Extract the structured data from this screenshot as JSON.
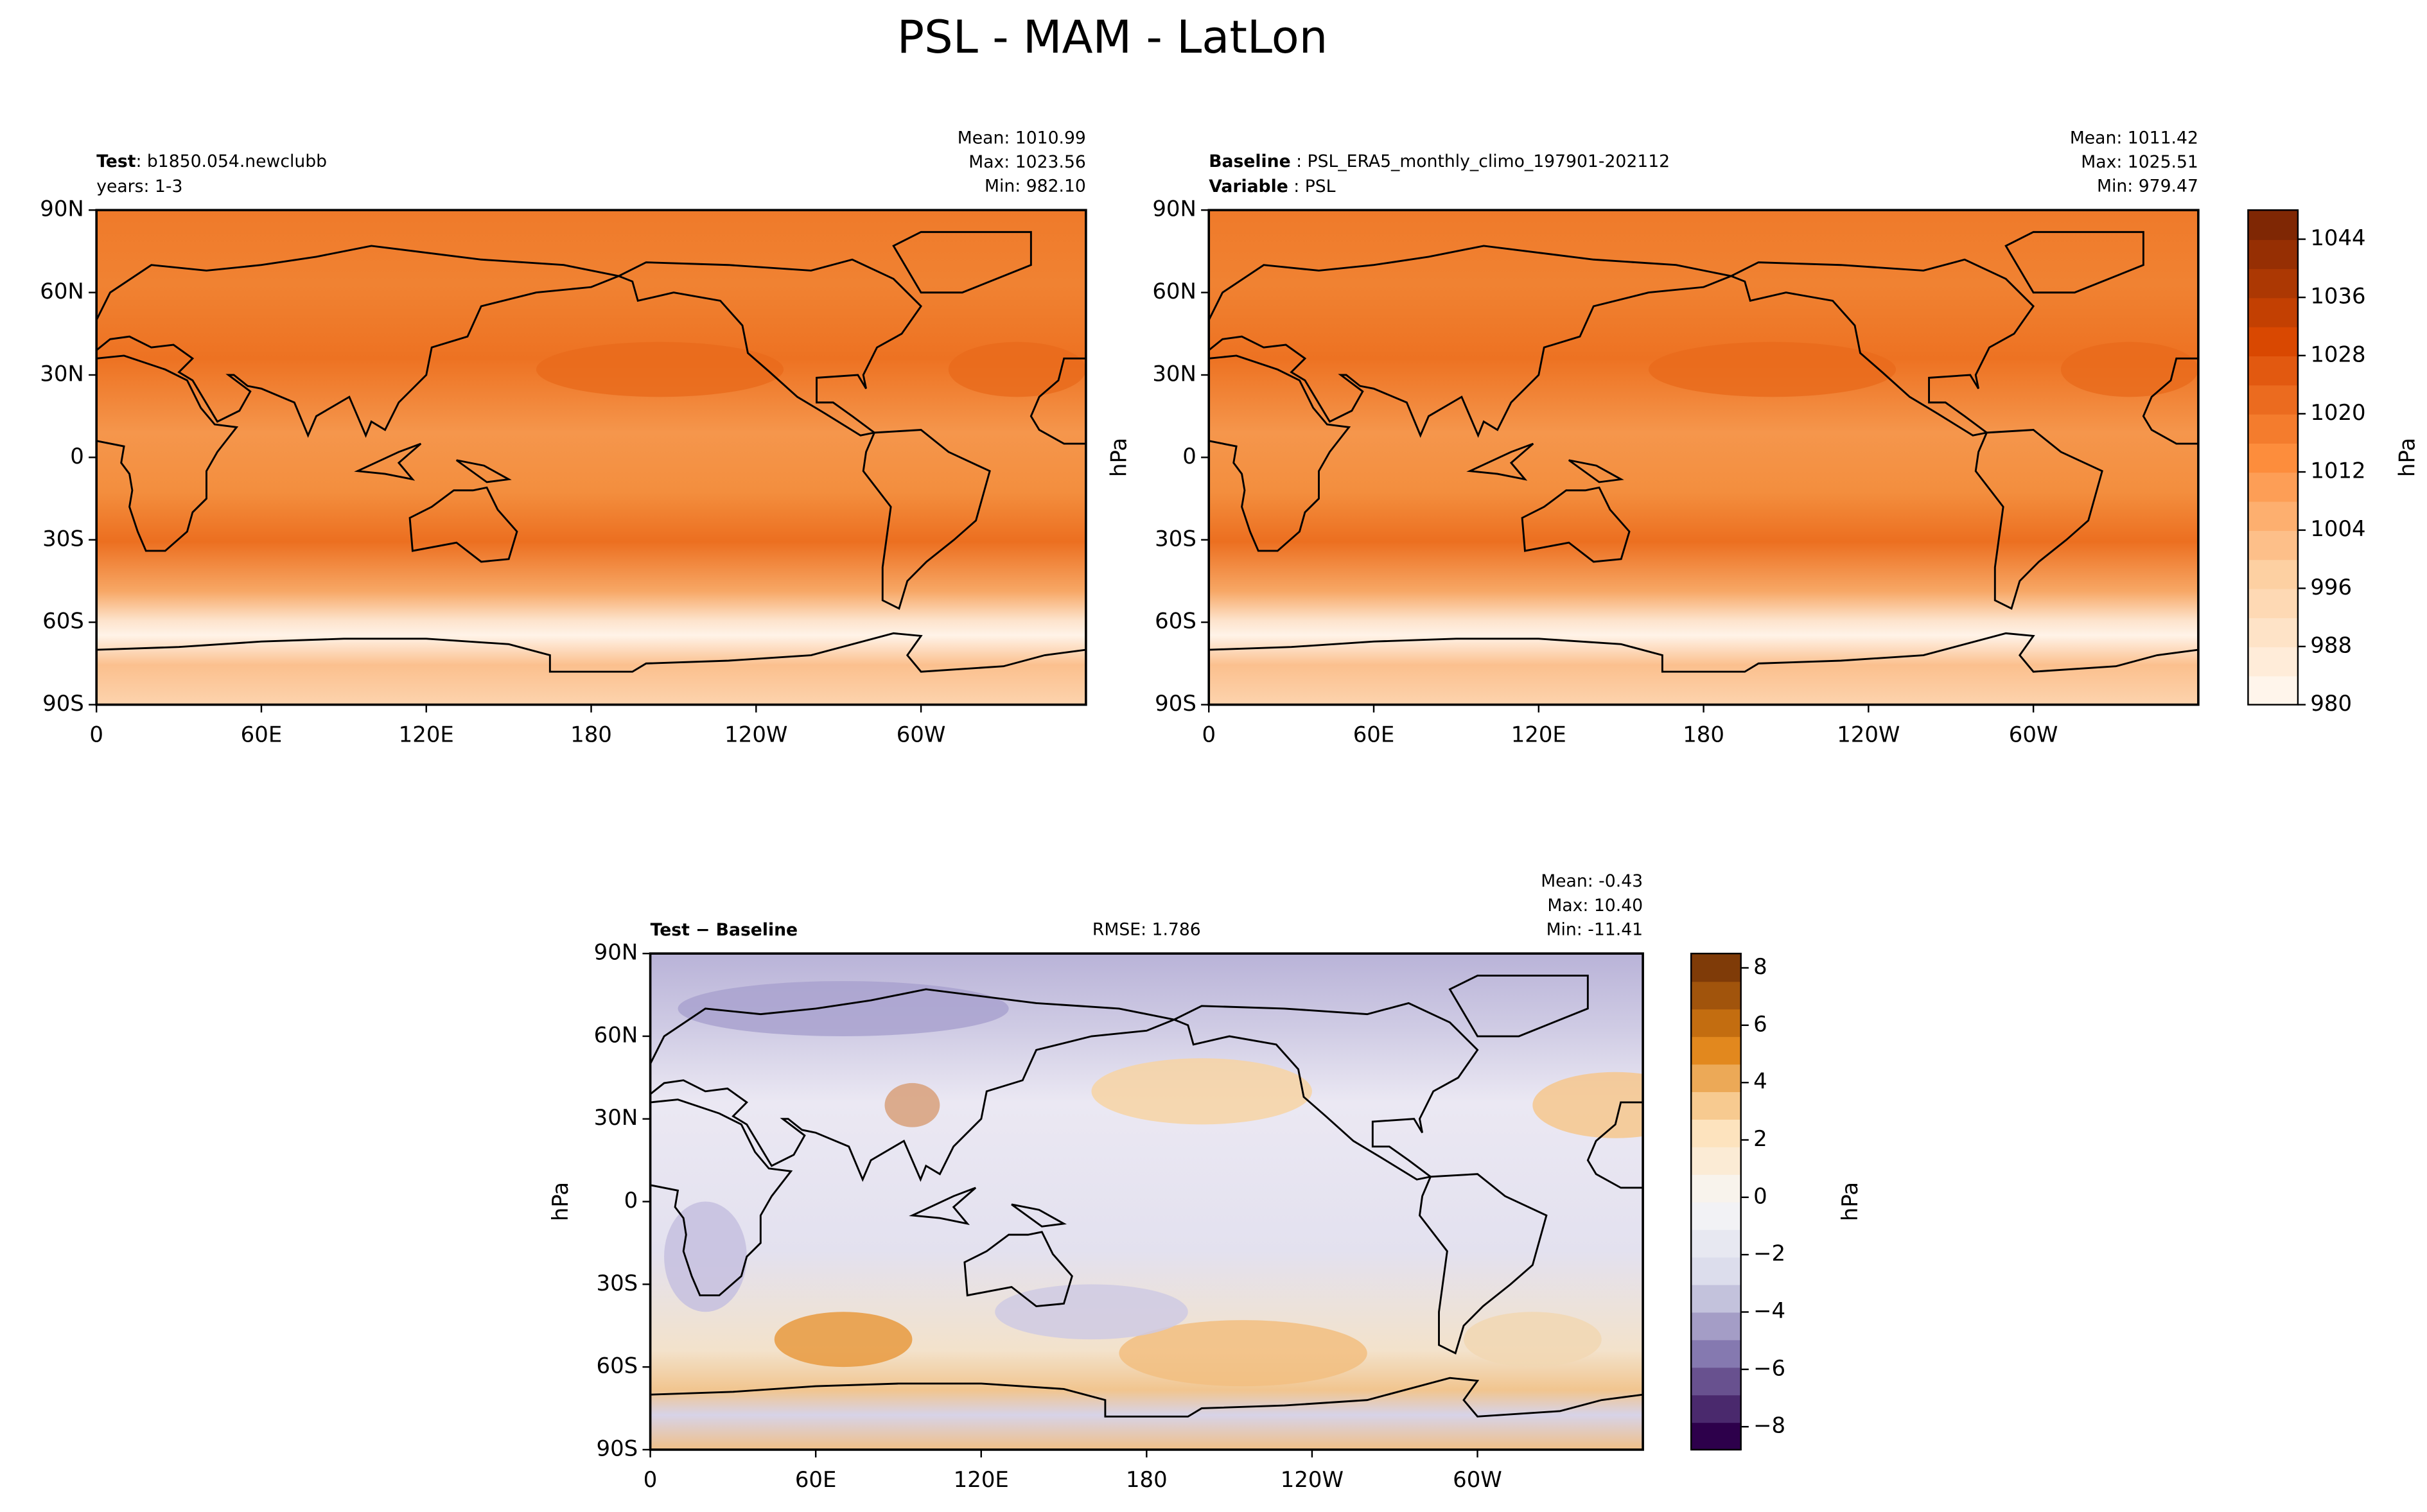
{
  "title": "PSL - MAM - LatLon",
  "panels": [
    {
      "left_lines": [
        {
          "bold": "Test",
          "text": ": b1850.054.newclubb"
        },
        {
          "text": "years: 1-3"
        }
      ],
      "stats": [
        "Mean: 1010.99",
        "Max: 1023.56",
        "Min: 982.10"
      ]
    },
    {
      "left_lines": [
        {
          "bold": "Baseline",
          "text": " : PSL_ERA5_monthly_climo_197901-202112"
        },
        {
          "bold": "Variable",
          "text": " : PSL"
        }
      ],
      "ylabel": "hPa",
      "stats": [
        "Mean: 1011.42",
        "Max: 1025.51",
        "Min: 979.47"
      ]
    },
    {
      "left_lines": [
        {
          "bold": "Test − Baseline"
        }
      ],
      "center": "RMSE: 1.786",
      "ylabel": "hPa",
      "stats": [
        "Mean: -0.43",
        "Max: 10.40",
        "Min: -11.41"
      ]
    }
  ],
  "lon_ticks": [
    0,
    {
      "value": 60,
      "label": "60E"
    },
    {
      "value": 120,
      "label": "120E"
    },
    180,
    {
      "value": -120,
      "label": "120W"
    },
    {
      "value": -60,
      "label": "60W"
    }
  ],
  "lat_ticks": [
    {
      "value": 90,
      "label": "90N"
    },
    {
      "value": 60,
      "label": "60N"
    },
    {
      "value": 30,
      "label": "30N"
    },
    0,
    {
      "value": -30,
      "label": "30S"
    },
    {
      "value": -60,
      "label": "60S"
    },
    {
      "value": -90,
      "label": "90S"
    }
  ],
  "colorbars": [
    {
      "label": "hPa",
      "lim": [
        980,
        1048
      ],
      "ticks": [
        980,
        988,
        996,
        1004,
        1012,
        1020,
        1028,
        1036,
        1044
      ]
    },
    {
      "label": "hPa",
      "lim": [
        -8.8,
        8.5
      ],
      "ticks": [
        {
          "value": -8,
          "label": "−8"
        },
        {
          "value": -6,
          "label": "−6"
        },
        {
          "value": -4,
          "label": "−4"
        },
        {
          "value": -2,
          "label": "−2"
        },
        0,
        2,
        4,
        6,
        8
      ]
    }
  ]
}
